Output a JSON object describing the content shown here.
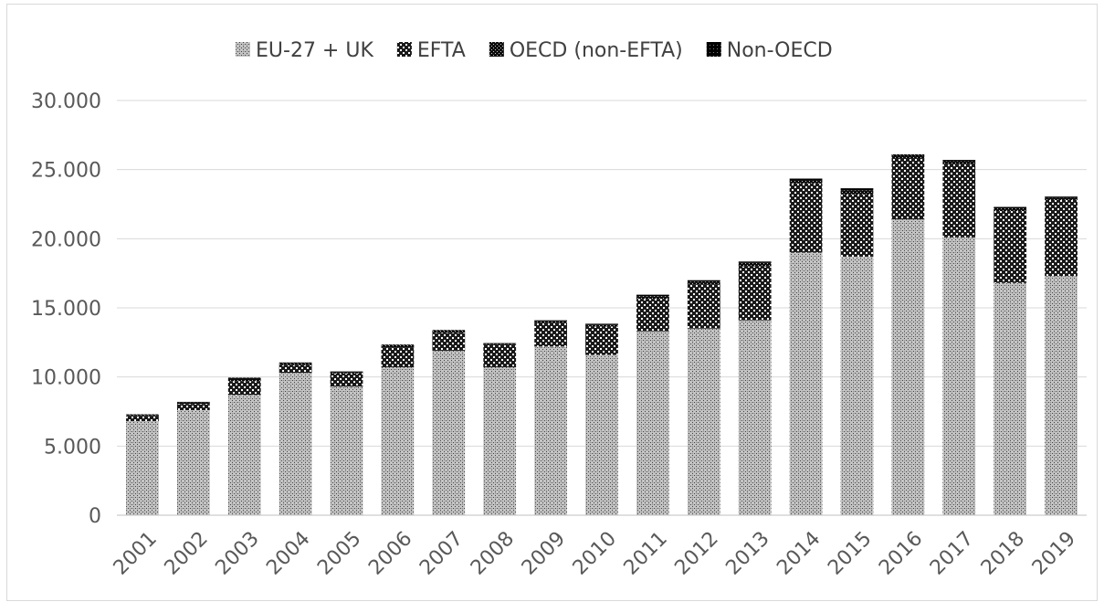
{
  "chart_data": {
    "type": "bar",
    "stacked": true,
    "categories": [
      "2001",
      "2002",
      "2003",
      "2004",
      "2005",
      "2006",
      "2007",
      "2008",
      "2009",
      "2010",
      "2011",
      "2012",
      "2013",
      "2014",
      "2015",
      "2016",
      "2017",
      "2018",
      "2019"
    ],
    "series": [
      {
        "name": "EU-27 + UK",
        "values": [
          6800,
          7600,
          8700,
          10300,
          9300,
          10700,
          11900,
          10700,
          12200,
          11600,
          13300,
          13500,
          14100,
          19000,
          18700,
          21400,
          20100,
          16800,
          17300
        ]
      },
      {
        "name": "EFTA",
        "values": [
          350,
          450,
          1000,
          550,
          950,
          1450,
          1300,
          1600,
          1700,
          2050,
          2350,
          3200,
          3900,
          5000,
          4500,
          4400,
          5300,
          5200,
          5500
        ]
      },
      {
        "name": "OECD (non-EFTA)",
        "values": [
          100,
          100,
          150,
          150,
          100,
          150,
          150,
          100,
          150,
          150,
          200,
          200,
          250,
          250,
          300,
          200,
          200,
          200,
          150
        ]
      },
      {
        "name": "Non-OECD",
        "values": [
          50,
          50,
          100,
          50,
          50,
          50,
          50,
          50,
          50,
          50,
          100,
          100,
          100,
          100,
          150,
          100,
          100,
          100,
          100
        ]
      }
    ],
    "y_ticks": [
      "0",
      "5.000",
      "10.000",
      "15.000",
      "20.000",
      "25.000",
      "30.000"
    ],
    "ylim": [
      0,
      30000
    ],
    "grid": true,
    "legend_position": "top",
    "colors": {
      "grid": "#d9d9d9",
      "axis": "#bfbfbf",
      "text": "#595959"
    }
  }
}
